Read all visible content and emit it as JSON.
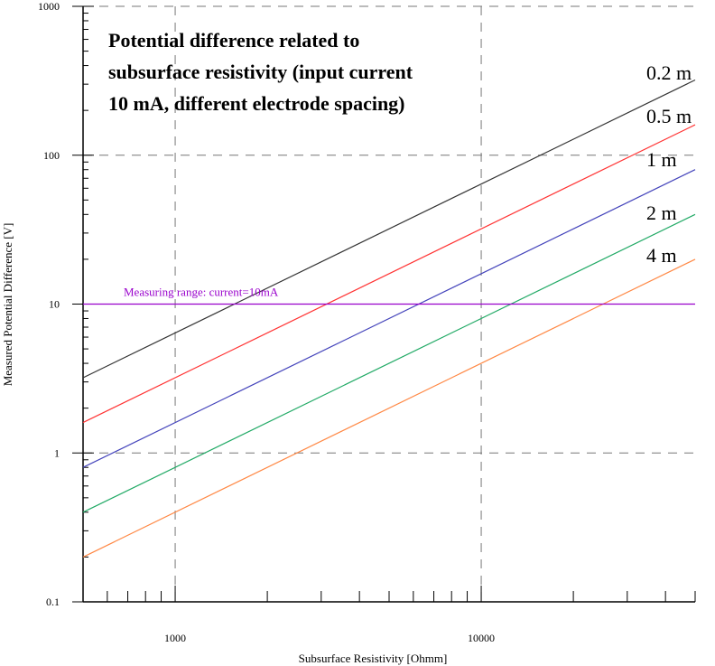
{
  "chart_data": {
    "type": "line",
    "title_lines": [
      "Potential difference related to",
      "subsurface resistivity (input current",
      "10 mA, different electrode spacing)"
    ],
    "xlabel": "Subsurface Resistivity [Ohmm]",
    "ylabel": "Measured Potential Difference [V]",
    "x_scale": "log",
    "y_scale": "log",
    "xlim": [
      500,
      50000
    ],
    "ylim": [
      0.1,
      1000
    ],
    "x_tick_labels": [
      {
        "value": 1000,
        "label": "1000"
      },
      {
        "value": 10000,
        "label": "10000"
      }
    ],
    "y_tick_labels": [
      {
        "value": 0.1,
        "label": "0.1"
      },
      {
        "value": 1,
        "label": "1"
      },
      {
        "value": 10,
        "label": "10"
      },
      {
        "value": 100,
        "label": "100"
      },
      {
        "value": 1000,
        "label": "1000"
      }
    ],
    "grid": "dashed at decades",
    "series": [
      {
        "name": "0.2 m",
        "color": "#333333",
        "x": [
          500,
          50000
        ],
        "y": [
          3.2,
          320
        ]
      },
      {
        "name": "0.5 m",
        "color": "#ff3333",
        "x": [
          500,
          50000
        ],
        "y": [
          1.6,
          160
        ]
      },
      {
        "name": "1 m",
        "color": "#4444bb",
        "x": [
          500,
          50000
        ],
        "y": [
          0.8,
          80
        ]
      },
      {
        "name": "2 m",
        "color": "#22aa66",
        "x": [
          500,
          50000
        ],
        "y": [
          0.4,
          40
        ]
      },
      {
        "name": "4 m",
        "color": "#ff8844",
        "x": [
          500,
          50000
        ],
        "y": [
          0.2,
          20
        ]
      }
    ],
    "reference_line": {
      "label": "Measuring range: current=10mA",
      "y": 10,
      "color": "#9900cc"
    }
  }
}
